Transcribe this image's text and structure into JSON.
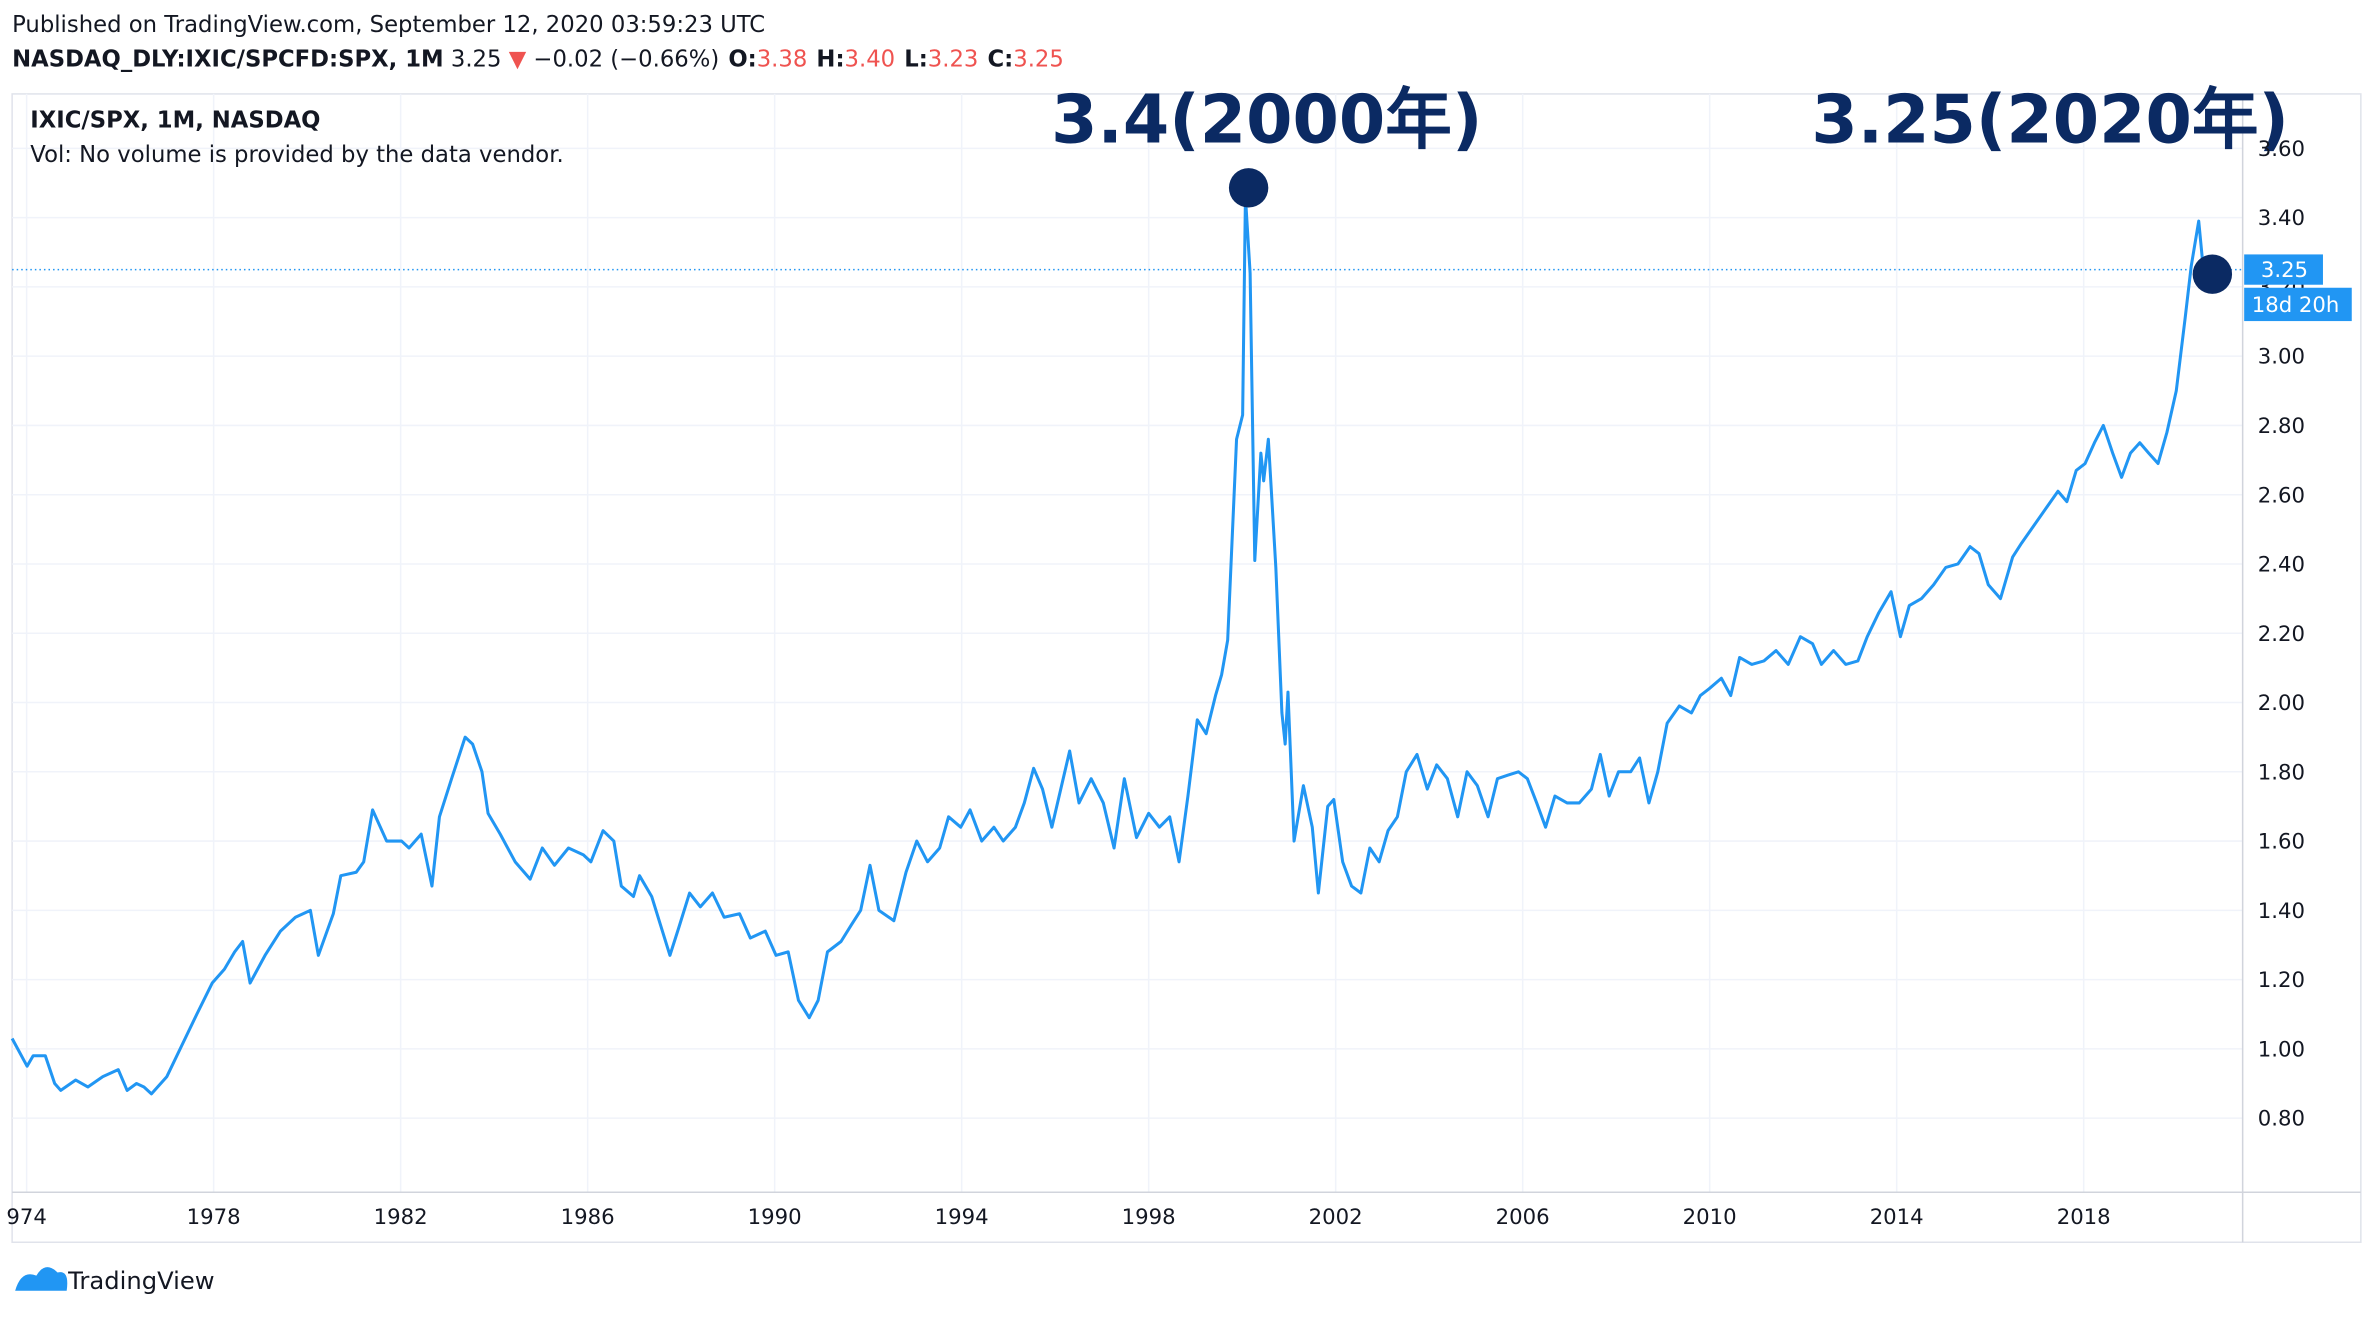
{
  "header": {
    "published": "Published on TradingView.com, September 12, 2020 03:59:23 UTC",
    "symbol": "NASDAQ_DLY:IXIC/SPCFD:SPX, 1M",
    "last": "3.25",
    "arrow": "▼",
    "change": "−0.02 (−0.66%)",
    "ohlc": [
      {
        "key": "O:",
        "value": "3.38"
      },
      {
        "key": "H:",
        "value": "3.40"
      },
      {
        "key": "L:",
        "value": "3.23"
      },
      {
        "key": "C:",
        "value": "3.25"
      }
    ]
  },
  "chart_data": {
    "type": "line",
    "legend_subtitle": "Vol: No volume is provided by the data vendor.",
    "annotations": [
      "3.4(2000年)",
      "3.25(2020年)"
    ],
    "price_line": {
      "value": 3.25,
      "label": "3.25"
    },
    "countdown": "18d 20h",
    "xlim": [
      1973.69,
      2021.4
    ],
    "ylim": [
      0.586,
      3.744
    ],
    "grid": true,
    "xticks": [
      {
        "value": 1974,
        "label": "974"
      },
      1978,
      1982,
      1986,
      1990,
      1994,
      1998,
      2002,
      2006,
      2010,
      2014,
      2018
    ],
    "yticks": [
      {
        "value": 0.8,
        "label": "0.80"
      },
      {
        "value": 1.0,
        "label": "1.00"
      },
      {
        "value": 1.2,
        "label": "1.20"
      },
      {
        "value": 1.4,
        "label": "1.40"
      },
      {
        "value": 1.6,
        "label": "1.60"
      },
      {
        "value": 1.8,
        "label": "1.80"
      },
      {
        "value": 2.0,
        "label": "2.00"
      },
      {
        "value": 2.2,
        "label": "2.20"
      },
      {
        "value": 2.4,
        "label": "2.40"
      },
      {
        "value": 2.6,
        "label": "2.60"
      },
      {
        "value": 2.8,
        "label": "2.80"
      },
      {
        "value": 3.0,
        "label": "3.00"
      },
      {
        "value": 3.2,
        "label": "3.20"
      },
      {
        "value": 3.4,
        "label": "3.40"
      },
      {
        "value": 3.6,
        "label": "3.60"
      }
    ],
    "x": [
      1973.69,
      1974.01,
      1974.14,
      1974.4,
      1974.6,
      1974.73,
      1975.05,
      1975.31,
      1975.63,
      1975.96,
      1976.15,
      1976.35,
      1976.51,
      1976.67,
      1977.0,
      1977.32,
      1977.64,
      1977.97,
      1978.23,
      1978.45,
      1978.62,
      1978.78,
      1979.1,
      1979.43,
      1979.75,
      1980.07,
      1980.24,
      1980.56,
      1980.72,
      1981.05,
      1981.21,
      1981.4,
      1981.7,
      1982.02,
      1982.18,
      1982.44,
      1982.67,
      1982.83,
      1983.09,
      1983.38,
      1983.54,
      1983.74,
      1983.87,
      1984.13,
      1984.45,
      1984.77,
      1985.03,
      1985.29,
      1985.59,
      1985.91,
      1986.07,
      1986.33,
      1986.56,
      1986.72,
      1986.98,
      1987.11,
      1987.37,
      1987.53,
      1987.76,
      1987.95,
      1988.18,
      1988.41,
      1988.67,
      1988.92,
      1989.25,
      1989.48,
      1989.8,
      1990.03,
      1990.29,
      1990.51,
      1990.74,
      1990.93,
      1991.13,
      1991.42,
      1991.65,
      1991.84,
      1992.04,
      1992.23,
      1992.55,
      1992.81,
      1993.04,
      1993.27,
      1993.53,
      1993.72,
      1993.98,
      1994.18,
      1994.43,
      1994.69,
      1994.89,
      1995.15,
      1995.34,
      1995.54,
      1995.73,
      1995.93,
      1996.12,
      1996.31,
      1996.51,
      1996.77,
      1997.03,
      1997.26,
      1997.48,
      1997.74,
      1998.0,
      1998.23,
      1998.45,
      1998.65,
      1998.84,
      1999.04,
      1999.23,
      1999.43,
      1999.56,
      1999.69,
      1999.88,
      2000.01,
      2000.07,
      2000.17,
      2000.27,
      2000.4,
      2000.46,
      2000.56,
      2000.72,
      2000.85,
      2000.92,
      2000.98,
      2001.11,
      2001.31,
      2001.5,
      2001.63,
      2001.83,
      2001.96,
      2002.15,
      2002.34,
      2002.54,
      2002.73,
      2002.93,
      2003.12,
      2003.32,
      2003.51,
      2003.74,
      2003.96,
      2004.16,
      2004.39,
      2004.61,
      2004.81,
      2005.03,
      2005.26,
      2005.46,
      2005.68,
      2005.91,
      2006.1,
      2006.3,
      2006.49,
      2006.69,
      2006.95,
      2007.21,
      2007.47,
      2007.66,
      2007.85,
      2008.05,
      2008.31,
      2008.5,
      2008.7,
      2008.89,
      2009.09,
      2009.35,
      2009.61,
      2009.8,
      2009.99,
      2010.25,
      2010.45,
      2010.64,
      2010.9,
      2011.16,
      2011.42,
      2011.68,
      2011.94,
      2012.2,
      2012.39,
      2012.65,
      2012.91,
      2013.17,
      2013.37,
      2013.62,
      2013.88,
      2014.08,
      2014.27,
      2014.53,
      2014.79,
      2015.05,
      2015.31,
      2015.57,
      2015.76,
      2015.96,
      2016.22,
      2016.48,
      2016.67,
      2016.93,
      2017.19,
      2017.45,
      2017.64,
      2017.84,
      2018.03,
      2018.23,
      2018.42,
      2018.62,
      2018.81,
      2019.0,
      2019.2,
      2019.39,
      2019.59,
      2019.78,
      2019.98,
      2020.17,
      2020.3,
      2020.46,
      2020.56
    ],
    "series": [
      {
        "name": "IXIC/SPX, 1M, NASDAQ",
        "color": "#2196f3",
        "values": [
          1.03,
          0.95,
          0.98,
          0.98,
          0.9,
          0.88,
          0.91,
          0.89,
          0.92,
          0.94,
          0.88,
          0.9,
          0.89,
          0.87,
          0.92,
          1.01,
          1.1,
          1.19,
          1.23,
          1.28,
          1.31,
          1.19,
          1.27,
          1.34,
          1.38,
          1.4,
          1.27,
          1.39,
          1.5,
          1.51,
          1.54,
          1.69,
          1.6,
          1.6,
          1.58,
          1.62,
          1.47,
          1.67,
          1.78,
          1.9,
          1.88,
          1.8,
          1.68,
          1.62,
          1.54,
          1.49,
          1.58,
          1.53,
          1.58,
          1.56,
          1.54,
          1.63,
          1.6,
          1.47,
          1.44,
          1.5,
          1.44,
          1.37,
          1.27,
          1.35,
          1.45,
          1.41,
          1.45,
          1.38,
          1.39,
          1.32,
          1.34,
          1.27,
          1.28,
          1.14,
          1.09,
          1.14,
          1.28,
          1.31,
          1.36,
          1.4,
          1.53,
          1.4,
          1.37,
          1.51,
          1.6,
          1.54,
          1.58,
          1.67,
          1.64,
          1.69,
          1.6,
          1.64,
          1.6,
          1.64,
          1.71,
          1.81,
          1.75,
          1.64,
          1.75,
          1.86,
          1.71,
          1.78,
          1.71,
          1.58,
          1.78,
          1.61,
          1.68,
          1.64,
          1.67,
          1.54,
          1.73,
          1.95,
          1.91,
          2.02,
          2.08,
          2.18,
          2.76,
          2.83,
          3.46,
          3.24,
          2.41,
          2.72,
          2.64,
          2.76,
          2.39,
          1.97,
          1.88,
          2.03,
          1.6,
          1.76,
          1.64,
          1.45,
          1.7,
          1.72,
          1.54,
          1.47,
          1.45,
          1.58,
          1.54,
          1.63,
          1.67,
          1.8,
          1.85,
          1.75,
          1.82,
          1.78,
          1.67,
          1.8,
          1.76,
          1.67,
          1.78,
          1.79,
          1.8,
          1.78,
          1.71,
          1.64,
          1.73,
          1.71,
          1.71,
          1.75,
          1.85,
          1.73,
          1.8,
          1.8,
          1.84,
          1.71,
          1.8,
          1.94,
          1.99,
          1.97,
          2.02,
          2.04,
          2.07,
          2.02,
          2.13,
          2.11,
          2.12,
          2.15,
          2.11,
          2.19,
          2.17,
          2.11,
          2.15,
          2.11,
          2.12,
          2.19,
          2.26,
          2.32,
          2.19,
          2.28,
          2.3,
          2.34,
          2.39,
          2.4,
          2.45,
          2.43,
          2.34,
          2.3,
          2.42,
          2.46,
          2.51,
          2.56,
          2.61,
          2.58,
          2.67,
          2.69,
          2.75,
          2.8,
          2.72,
          2.65,
          2.72,
          2.75,
          2.72,
          2.69,
          2.78,
          2.9,
          3.11,
          3.26,
          3.39,
          3.25
        ]
      }
    ]
  },
  "footer": {
    "brand": "TradingView"
  }
}
